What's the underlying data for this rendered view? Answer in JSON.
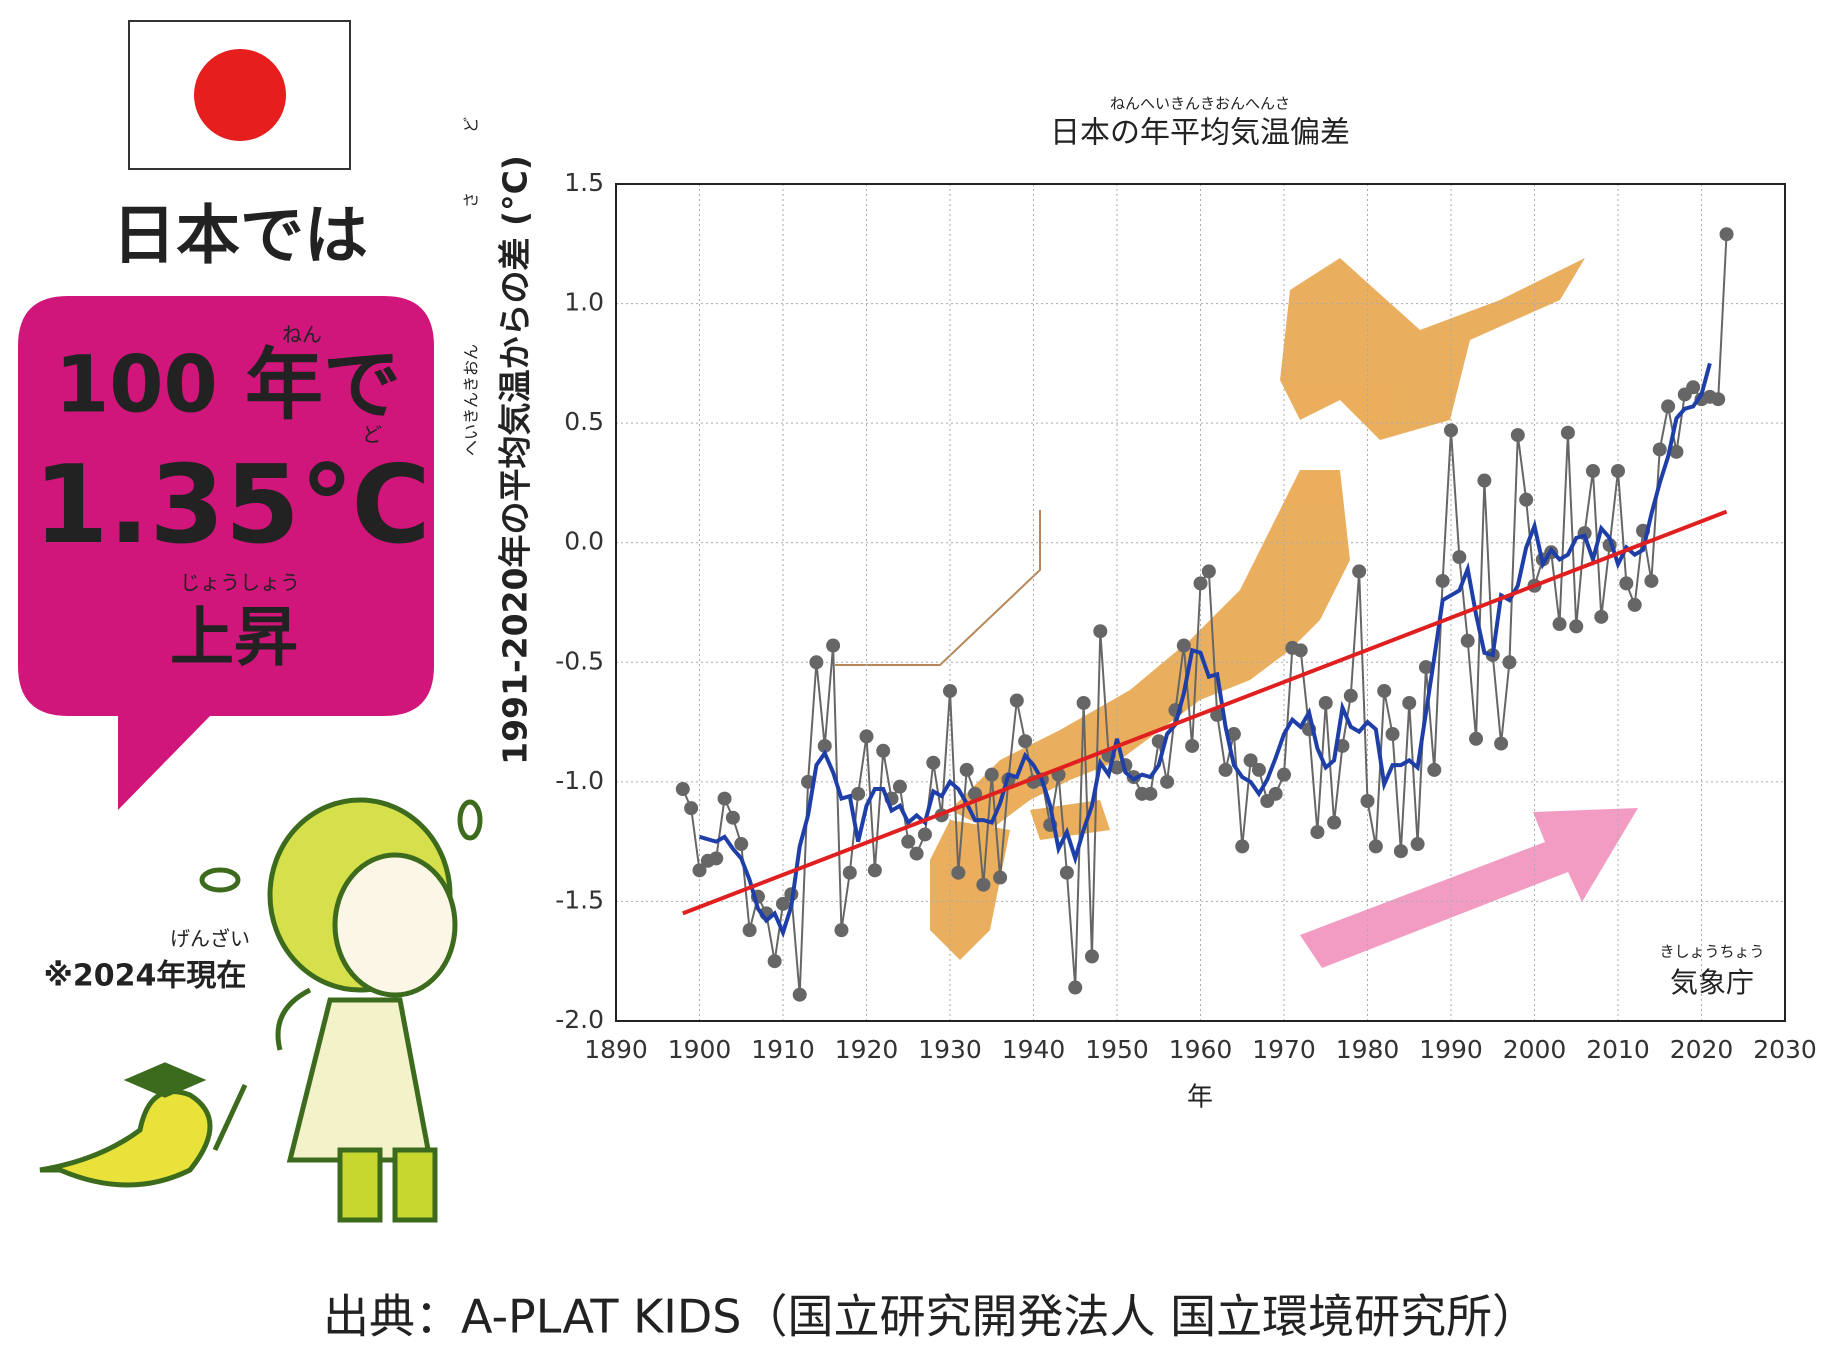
{
  "panel": {
    "country": "日本では",
    "ruby_year": "ねん",
    "headline": "100 年で",
    "ruby_degree": "ど",
    "value_text": "1.35℃",
    "ruby_rise": "じょうしょう",
    "rise": "上昇",
    "ruby_now": "げんざい",
    "note": "※2024年現在"
  },
  "source": "出典：A-PLAT KIDS（国立研究開発法人 国立環境研究所）",
  "chart_data": {
    "type": "line",
    "title": "日本の年平均気温偏差",
    "title_ruby": "ねんへいきんきおんへんさ",
    "y_label": "1991-2020年の平均気温からの差 (°C)",
    "y_label_ruby": [
      "へいきんきおん",
      "さ",
      "ど"
    ],
    "x_label": "年",
    "annotation": "気象庁",
    "annotation_ruby": "きしょうちょう",
    "grid": true,
    "xlim": [
      1890,
      2030
    ],
    "xticks": [
      1890,
      1900,
      1910,
      1920,
      1930,
      1940,
      1950,
      1960,
      1970,
      1980,
      1990,
      2000,
      2010,
      2020,
      2030
    ],
    "ylim": [
      -2,
      1.5
    ],
    "yticks": [
      {
        "value": -2,
        "label": "-2.0"
      },
      -1.5,
      {
        "value": -1,
        "label": "-1.0"
      },
      -0.5,
      {
        "value": 0,
        "label": "0.0"
      },
      0.5,
      {
        "value": 1,
        "label": "1.0"
      },
      1.5
    ],
    "x": [
      1898,
      1899,
      1900,
      1901,
      1902,
      1903,
      1904,
      1905,
      1906,
      1907,
      1908,
      1909,
      1910,
      1911,
      1912,
      1913,
      1914,
      1915,
      1916,
      1917,
      1918,
      1919,
      1920,
      1921,
      1922,
      1923,
      1924,
      1925,
      1926,
      1927,
      1928,
      1929,
      1930,
      1931,
      1932,
      1933,
      1934,
      1935,
      1936,
      1937,
      1938,
      1939,
      1940,
      1941,
      1942,
      1943,
      1944,
      1945,
      1946,
      1947,
      1948,
      1949,
      1950,
      1951,
      1952,
      1953,
      1954,
      1955,
      1956,
      1957,
      1958,
      1959,
      1960,
      1961,
      1962,
      1963,
      1964,
      1965,
      1966,
      1967,
      1968,
      1969,
      1970,
      1971,
      1972,
      1973,
      1974,
      1975,
      1976,
      1977,
      1978,
      1979,
      1980,
      1981,
      1982,
      1983,
      1984,
      1985,
      1986,
      1987,
      1988,
      1989,
      1990,
      1991,
      1992,
      1993,
      1994,
      1995,
      1996,
      1997,
      1998,
      1999,
      2000,
      2001,
      2002,
      2003,
      2004,
      2005,
      2006,
      2007,
      2008,
      2009,
      2010,
      2011,
      2012,
      2013,
      2014,
      2015,
      2016,
      2017,
      2018,
      2019,
      2020,
      2021,
      2022,
      2023
    ],
    "series": [
      {
        "color": "#666666",
        "markers": true,
        "values": [
          -1.03,
          -1.11,
          -1.37,
          -1.33,
          -1.32,
          -1.07,
          -1.15,
          -1.26,
          -1.62,
          -1.48,
          -1.55,
          -1.75,
          -1.51,
          -1.47,
          -1.89,
          -1.0,
          -0.5,
          -0.85,
          -0.43,
          -1.62,
          -1.38,
          -1.05,
          -0.81,
          -1.37,
          -0.87,
          -1.07,
          -1.02,
          -1.25,
          -1.3,
          -1.22,
          -0.92,
          -1.14,
          -0.62,
          -1.38,
          -0.95,
          -1.05,
          -1.43,
          -0.97,
          -1.4,
          -0.99,
          -0.66,
          -0.83,
          -1.0,
          -0.99,
          -1.18,
          -0.97,
          -1.38,
          -1.86,
          -0.67,
          -1.73,
          -0.37,
          -0.89,
          -0.94,
          -0.93,
          -0.98,
          -1.05,
          -1.05,
          -0.83,
          -1.0,
          -0.7,
          -0.43,
          -0.85,
          -0.17,
          -0.12,
          -0.72,
          -0.95,
          -0.8,
          -1.27,
          -0.91,
          -0.95,
          -1.08,
          -1.05,
          -0.97,
          -0.44,
          -0.45,
          -0.78,
          -1.21,
          -0.67,
          -1.17,
          -0.85,
          -0.64,
          -0.12,
          -1.08,
          -1.27,
          -0.62,
          -0.8,
          -1.29,
          -0.67,
          -1.26,
          -0.52,
          -0.95,
          -0.16,
          0.47,
          -0.06,
          -0.41,
          -0.82,
          0.26,
          -0.47,
          -0.84,
          -0.5,
          0.45,
          0.18,
          -0.18,
          -0.07,
          -0.04,
          -0.34,
          0.46,
          -0.35,
          0.04,
          0.3,
          -0.31,
          -0.01,
          0.3,
          -0.17,
          -0.26,
          0.05,
          -0.16,
          0.39,
          0.57,
          0.38,
          0.62,
          0.65,
          0.6,
          0.61,
          0.6,
          1.29
        ]
      },
      {
        "color": "#1f3fa8",
        "markers": false,
        "values": [
          null,
          null,
          -1.23,
          -1.24,
          -1.25,
          -1.23,
          -1.28,
          -1.32,
          -1.41,
          -1.53,
          -1.58,
          -1.55,
          -1.63,
          -1.52,
          -1.27,
          -1.14,
          -0.93,
          -0.88,
          -0.96,
          -1.07,
          -1.06,
          -1.25,
          -1.1,
          -1.03,
          -1.03,
          -1.12,
          -1.1,
          -1.17,
          -1.14,
          -1.17,
          -1.04,
          -1.06,
          -1.0,
          -1.03,
          -1.09,
          -1.16,
          -1.16,
          -1.17,
          -1.09,
          -0.97,
          -0.98,
          -0.89,
          -0.93,
          -0.99,
          -1.1,
          -1.28,
          -1.21,
          -1.32,
          -1.2,
          -1.1,
          -0.92,
          -0.97,
          -0.82,
          -0.96,
          -0.99,
          -0.97,
          -0.98,
          -0.93,
          -0.8,
          -0.76,
          -0.63,
          -0.45,
          -0.46,
          -0.56,
          -0.55,
          -0.77,
          -0.93,
          -0.98,
          -1.0,
          -1.05,
          -0.99,
          -0.9,
          -0.8,
          -0.74,
          -0.77,
          -0.71,
          -0.86,
          -0.94,
          -0.91,
          -0.69,
          -0.77,
          -0.79,
          -0.75,
          -0.78,
          -1.01,
          -0.93,
          -0.93,
          -0.91,
          -0.94,
          -0.71,
          -0.48,
          -0.24,
          -0.22,
          -0.2,
          -0.11,
          -0.3,
          -0.46,
          -0.47,
          -0.22,
          -0.24,
          -0.18,
          -0.02,
          0.07,
          -0.09,
          -0.03,
          -0.07,
          -0.05,
          0.02,
          0.03,
          -0.07,
          0.06,
          0.02,
          -0.09,
          -0.02,
          -0.05,
          -0.03,
          0.12,
          0.25,
          0.36,
          0.52,
          0.56,
          0.57,
          0.62,
          0.75,
          null,
          null
        ]
      },
      {
        "color": "#e02020",
        "markers": false,
        "x": [
          1898,
          2023
        ],
        "values": [
          -1.55,
          0.13
        ]
      }
    ]
  }
}
